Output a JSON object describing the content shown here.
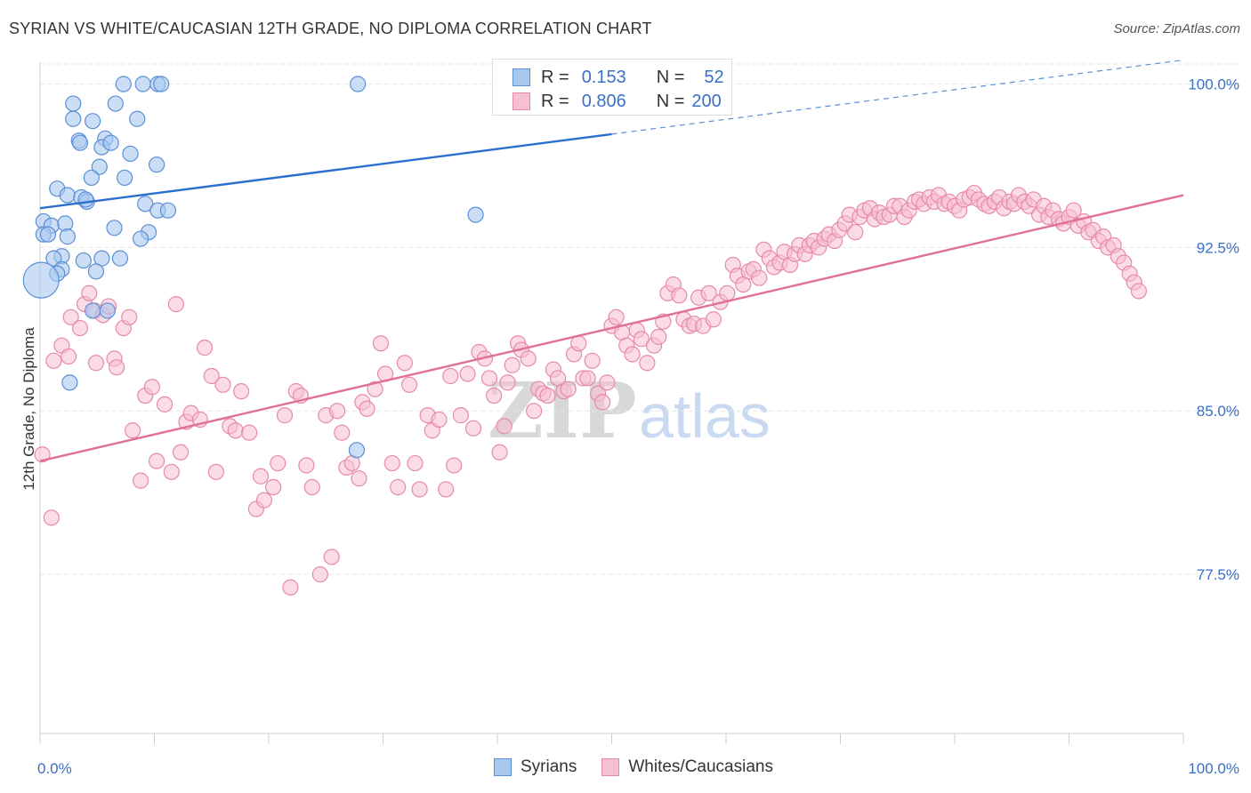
{
  "title": "SYRIAN VS WHITE/CAUCASIAN 12TH GRADE, NO DIPLOMA CORRELATION CHART",
  "source": "Source: ZipAtlas.com",
  "watermark": {
    "zip": "ZIP",
    "atlas": "atlas"
  },
  "legend": {
    "r_label": "R =",
    "n_label": "N =",
    "rows": [
      {
        "r": "0.153",
        "n": "52"
      },
      {
        "r": "0.806",
        "n": "200"
      }
    ]
  },
  "colors": {
    "syrian_fill": "#a9c8f0",
    "syrian_stroke": "#5b8fd6",
    "syrian_line": "#2b6fce",
    "white_fill": "#f7c0d2",
    "white_stroke": "#e68aaa",
    "white_line": "#e06f99",
    "tick_label": "#3a6fc4",
    "grid": "#e6e6e6"
  },
  "chart_data": {
    "type": "scatter",
    "title": "SYRIAN VS WHITE/CAUCASIAN 12TH GRADE, NO DIPLOMA CORRELATION CHART",
    "xlabel": "",
    "ylabel": "12th Grade, No Diploma",
    "xlim": [
      0,
      100
    ],
    "ylim": [
      70.2,
      101
    ],
    "x_tick_labels": [
      "0.0%",
      "100.0%"
    ],
    "y_ticks": [
      77.5,
      85.0,
      92.5,
      100.0
    ],
    "y_tick_labels": [
      "77.5%",
      "85.0%",
      "92.5%",
      "100.0%"
    ],
    "grid": "horizontal dashed",
    "legend_position": "top-center",
    "series": [
      {
        "name": "Syrians",
        "r": 0.153,
        "n": 52,
        "trend": {
          "x": [
            0,
            100
          ],
          "y": [
            94.3,
            101.1
          ],
          "solid_until": 50
        },
        "points": [
          [
            7.3,
            100
          ],
          [
            9.0,
            100
          ],
          [
            10.3,
            100
          ],
          [
            10.6,
            100
          ],
          [
            27.8,
            100
          ],
          [
            50.5,
            100
          ],
          [
            2.9,
            99.1
          ],
          [
            6.6,
            99.1
          ],
          [
            2.9,
            98.4
          ],
          [
            8.5,
            98.4
          ],
          [
            4.6,
            98.3
          ],
          [
            3.4,
            97.4
          ],
          [
            5.7,
            97.5
          ],
          [
            3.5,
            97.3
          ],
          [
            5.4,
            97.1
          ],
          [
            6.2,
            97.3
          ],
          [
            7.9,
            96.8
          ],
          [
            10.2,
            96.3
          ],
          [
            5.2,
            96.2
          ],
          [
            4.5,
            95.7
          ],
          [
            7.4,
            95.7
          ],
          [
            1.5,
            95.2
          ],
          [
            2.4,
            94.9
          ],
          [
            3.6,
            94.8
          ],
          [
            4.1,
            94.6
          ],
          [
            4.0,
            94.7
          ],
          [
            9.2,
            94.5
          ],
          [
            10.3,
            94.2
          ],
          [
            11.2,
            94.2
          ],
          [
            38.1,
            94.0
          ],
          [
            0.3,
            93.7
          ],
          [
            1.0,
            93.5
          ],
          [
            2.2,
            93.6
          ],
          [
            6.5,
            93.4
          ],
          [
            0.3,
            93.1
          ],
          [
            0.7,
            93.1
          ],
          [
            2.4,
            93.0
          ],
          [
            9.5,
            93.2
          ],
          [
            8.8,
            92.9
          ],
          [
            1.9,
            92.1
          ],
          [
            1.2,
            92.0
          ],
          [
            3.8,
            91.9
          ],
          [
            5.4,
            92.0
          ],
          [
            7.0,
            92.0
          ],
          [
            1.9,
            91.5
          ],
          [
            4.9,
            91.4
          ],
          [
            1.5,
            91.3
          ],
          [
            0.1,
            91.0
          ],
          [
            4.6,
            89.6
          ],
          [
            5.9,
            89.6
          ],
          [
            2.6,
            86.3
          ],
          [
            27.7,
            83.2
          ]
        ]
      },
      {
        "name": "Whites/Caucasians",
        "r": 0.806,
        "n": 200,
        "trend": {
          "x": [
            0,
            100
          ],
          "y": [
            82.7,
            94.9
          ]
        },
        "points": [
          [
            0.2,
            83.0
          ],
          [
            1.0,
            80.1
          ],
          [
            1.2,
            87.3
          ],
          [
            1.9,
            88.0
          ],
          [
            2.5,
            87.5
          ],
          [
            2.7,
            89.3
          ],
          [
            3.5,
            88.8
          ],
          [
            3.9,
            89.9
          ],
          [
            4.3,
            90.4
          ],
          [
            4.8,
            89.6
          ],
          [
            4.9,
            87.2
          ],
          [
            5.5,
            89.4
          ],
          [
            6.0,
            89.8
          ],
          [
            6.5,
            87.4
          ],
          [
            6.7,
            87.0
          ],
          [
            7.3,
            88.8
          ],
          [
            7.8,
            89.3
          ],
          [
            8.1,
            84.1
          ],
          [
            8.8,
            81.8
          ],
          [
            9.2,
            85.7
          ],
          [
            9.8,
            86.1
          ],
          [
            10.2,
            82.7
          ],
          [
            10.9,
            85.3
          ],
          [
            11.5,
            82.2
          ],
          [
            11.9,
            89.9
          ],
          [
            12.3,
            83.1
          ],
          [
            12.8,
            84.5
          ],
          [
            13.2,
            84.9
          ],
          [
            14.0,
            84.6
          ],
          [
            14.4,
            87.9
          ],
          [
            15.0,
            86.6
          ],
          [
            15.4,
            82.2
          ],
          [
            16.0,
            86.2
          ],
          [
            16.6,
            84.3
          ],
          [
            17.1,
            84.1
          ],
          [
            17.6,
            85.9
          ],
          [
            18.3,
            84.0
          ],
          [
            18.9,
            80.5
          ],
          [
            19.3,
            82.0
          ],
          [
            19.6,
            80.9
          ],
          [
            20.4,
            81.5
          ],
          [
            20.8,
            82.6
          ],
          [
            21.4,
            84.8
          ],
          [
            21.9,
            76.9
          ],
          [
            22.4,
            85.9
          ],
          [
            22.8,
            85.7
          ],
          [
            23.3,
            82.5
          ],
          [
            23.8,
            81.5
          ],
          [
            24.5,
            77.5
          ],
          [
            25.0,
            84.8
          ],
          [
            25.5,
            78.3
          ],
          [
            26.0,
            85.0
          ],
          [
            26.4,
            84.0
          ],
          [
            26.8,
            82.4
          ],
          [
            27.3,
            82.6
          ],
          [
            27.9,
            81.9
          ],
          [
            28.2,
            85.4
          ],
          [
            28.6,
            85.1
          ],
          [
            29.3,
            86.0
          ],
          [
            29.8,
            88.1
          ],
          [
            30.2,
            86.7
          ],
          [
            30.8,
            82.6
          ],
          [
            31.3,
            81.5
          ],
          [
            31.9,
            87.2
          ],
          [
            32.3,
            86.2
          ],
          [
            32.8,
            82.6
          ],
          [
            33.2,
            81.4
          ],
          [
            33.9,
            84.8
          ],
          [
            34.3,
            84.1
          ],
          [
            34.9,
            84.6
          ],
          [
            35.5,
            81.4
          ],
          [
            35.9,
            86.6
          ],
          [
            36.2,
            82.5
          ],
          [
            36.8,
            84.8
          ],
          [
            37.4,
            86.7
          ],
          [
            37.9,
            84.2
          ],
          [
            38.4,
            87.7
          ],
          [
            38.9,
            87.4
          ],
          [
            39.3,
            86.5
          ],
          [
            39.7,
            85.7
          ],
          [
            40.2,
            83.1
          ],
          [
            40.6,
            84.3
          ],
          [
            40.9,
            86.3
          ],
          [
            41.3,
            87.1
          ],
          [
            41.8,
            88.1
          ],
          [
            42.1,
            87.8
          ],
          [
            42.7,
            87.4
          ],
          [
            43.2,
            85.0
          ],
          [
            43.6,
            86.0
          ],
          [
            44.0,
            85.8
          ],
          [
            44.4,
            85.7
          ],
          [
            44.9,
            86.9
          ],
          [
            45.3,
            86.5
          ],
          [
            45.8,
            85.9
          ],
          [
            46.2,
            86.0
          ],
          [
            46.7,
            87.6
          ],
          [
            47.1,
            88.1
          ],
          [
            47.5,
            86.5
          ],
          [
            47.9,
            86.5
          ],
          [
            48.3,
            87.3
          ],
          [
            48.8,
            85.8
          ],
          [
            49.2,
            85.4
          ],
          [
            49.6,
            86.3
          ],
          [
            50.0,
            88.9
          ],
          [
            50.4,
            89.3
          ],
          [
            50.9,
            88.6
          ],
          [
            51.3,
            88.0
          ],
          [
            51.8,
            87.6
          ],
          [
            52.2,
            88.7
          ],
          [
            52.6,
            88.3
          ],
          [
            53.1,
            87.2
          ],
          [
            53.7,
            88.0
          ],
          [
            54.1,
            88.4
          ],
          [
            54.5,
            89.1
          ],
          [
            54.9,
            90.4
          ],
          [
            55.4,
            90.8
          ],
          [
            55.9,
            90.3
          ],
          [
            56.3,
            89.2
          ],
          [
            56.8,
            88.9
          ],
          [
            57.2,
            89.0
          ],
          [
            57.6,
            90.2
          ],
          [
            58.0,
            88.9
          ],
          [
            58.5,
            90.4
          ],
          [
            58.9,
            89.2
          ],
          [
            59.5,
            90.0
          ],
          [
            60.1,
            90.4
          ],
          [
            60.6,
            91.7
          ],
          [
            61.0,
            91.2
          ],
          [
            61.5,
            90.8
          ],
          [
            62.0,
            91.4
          ],
          [
            62.4,
            91.5
          ],
          [
            62.9,
            91.1
          ],
          [
            63.3,
            92.4
          ],
          [
            63.8,
            92.0
          ],
          [
            64.2,
            91.6
          ],
          [
            64.7,
            91.8
          ],
          [
            65.1,
            92.3
          ],
          [
            65.6,
            91.7
          ],
          [
            66.0,
            92.2
          ],
          [
            66.4,
            92.6
          ],
          [
            66.9,
            92.2
          ],
          [
            67.3,
            92.6
          ],
          [
            67.7,
            92.8
          ],
          [
            68.1,
            92.5
          ],
          [
            68.6,
            92.9
          ],
          [
            69.0,
            93.1
          ],
          [
            69.5,
            92.8
          ],
          [
            69.9,
            93.3
          ],
          [
            70.4,
            93.6
          ],
          [
            70.8,
            94.0
          ],
          [
            71.3,
            93.2
          ],
          [
            71.7,
            93.9
          ],
          [
            72.1,
            94.2
          ],
          [
            72.6,
            94.3
          ],
          [
            73.0,
            93.8
          ],
          [
            73.4,
            94.1
          ],
          [
            73.8,
            93.9
          ],
          [
            74.3,
            94.0
          ],
          [
            74.7,
            94.4
          ],
          [
            75.2,
            94.4
          ],
          [
            75.6,
            93.9
          ],
          [
            76.0,
            94.2
          ],
          [
            76.5,
            94.6
          ],
          [
            76.9,
            94.7
          ],
          [
            77.3,
            94.5
          ],
          [
            77.8,
            94.8
          ],
          [
            78.2,
            94.6
          ],
          [
            78.6,
            94.9
          ],
          [
            79.1,
            94.5
          ],
          [
            79.5,
            94.6
          ],
          [
            80.0,
            94.4
          ],
          [
            80.4,
            94.2
          ],
          [
            80.8,
            94.7
          ],
          [
            81.3,
            94.8
          ],
          [
            81.7,
            95.0
          ],
          [
            82.1,
            94.7
          ],
          [
            82.6,
            94.5
          ],
          [
            83.0,
            94.4
          ],
          [
            83.5,
            94.6
          ],
          [
            83.9,
            94.8
          ],
          [
            84.3,
            94.3
          ],
          [
            84.8,
            94.6
          ],
          [
            85.2,
            94.5
          ],
          [
            85.6,
            94.9
          ],
          [
            86.1,
            94.6
          ],
          [
            86.5,
            94.4
          ],
          [
            86.9,
            94.7
          ],
          [
            87.4,
            94.0
          ],
          [
            87.8,
            94.4
          ],
          [
            88.2,
            93.9
          ],
          [
            88.6,
            94.2
          ],
          [
            89.1,
            93.8
          ],
          [
            89.5,
            93.6
          ],
          [
            90.0,
            93.9
          ],
          [
            90.4,
            94.2
          ],
          [
            90.8,
            93.5
          ],
          [
            91.3,
            93.7
          ],
          [
            91.7,
            93.2
          ],
          [
            92.1,
            93.3
          ],
          [
            92.6,
            92.8
          ],
          [
            93.0,
            93.0
          ],
          [
            93.4,
            92.5
          ],
          [
            93.9,
            92.6
          ],
          [
            94.3,
            92.1
          ],
          [
            94.8,
            91.8
          ],
          [
            95.3,
            91.3
          ],
          [
            95.7,
            90.9
          ],
          [
            96.1,
            90.5
          ]
        ]
      }
    ]
  },
  "bottom_legend": [
    {
      "label": "Syrians"
    },
    {
      "label": "Whites/Caucasians"
    }
  ]
}
